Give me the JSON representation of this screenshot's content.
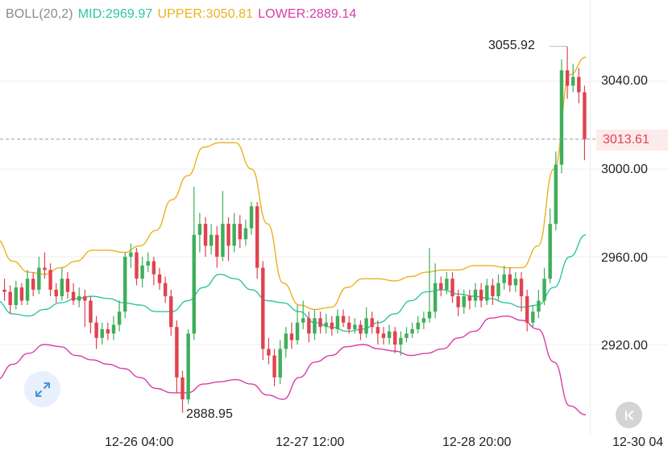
{
  "legend": {
    "indicator": "BOLL(20,2)",
    "mid_label": "MID:2969.97",
    "upper_label": "UPPER:3050.81",
    "lower_label": "LOWER:2889.14"
  },
  "colors": {
    "up": "#3fae5a",
    "down": "#e0434f",
    "mid": "#2cc6a3",
    "upper": "#eab21e",
    "lower": "#d63da8",
    "grid": "#efefef",
    "price_line": "#9a9a9a",
    "price_tag_bg": "#fdeaea",
    "price_tag_text": "#e0434f"
  },
  "icons": {
    "expand": "expand-diagonal-arrows-icon",
    "scroll_right": "scroll-to-latest-chevron-icon"
  },
  "chart_data": {
    "type": "candlestick",
    "indicator": "Bollinger Bands (20,2)",
    "y_axis": {
      "position": "right",
      "ticks": [
        3040,
        3000,
        2960,
        2920
      ],
      "tick_labels": [
        "3040.00",
        "3000.00",
        "2960.00",
        "2920.00"
      ],
      "range": [
        2878,
        3075
      ]
    },
    "x_axis": {
      "tick_labels": [
        "12-26 04:00",
        "12-27 12:00",
        "12-28 20:00",
        "12-30 04"
      ]
    },
    "current_price": {
      "value": 3013.61,
      "label": "3013.61"
    },
    "high_marker": {
      "value": 3055.92,
      "label": "3055.92"
    },
    "low_marker": {
      "value": 2888.95,
      "label": "2888.95"
    },
    "grid": true,
    "candles": [
      [
        2945,
        2944,
        2950,
        2940
      ],
      [
        2944,
        2938,
        2947,
        2934
      ],
      [
        2938,
        2946,
        2949,
        2936
      ],
      [
        2946,
        2940,
        2948,
        2938
      ],
      [
        2940,
        2950,
        2954,
        2938
      ],
      [
        2950,
        2945,
        2953,
        2942
      ],
      [
        2945,
        2955,
        2960,
        2943
      ],
      [
        2955,
        2954,
        2962,
        2950
      ],
      [
        2954,
        2945,
        2957,
        2942
      ],
      [
        2945,
        2942,
        2948,
        2939
      ],
      [
        2942,
        2950,
        2955,
        2940
      ],
      [
        2950,
        2944,
        2953,
        2941
      ],
      [
        2944,
        2940,
        2948,
        2938
      ],
      [
        2940,
        2942,
        2946,
        2937
      ],
      [
        2942,
        2940,
        2945,
        2928
      ],
      [
        2940,
        2930,
        2942,
        2925
      ],
      [
        2930,
        2923,
        2933,
        2918
      ],
      [
        2923,
        2927,
        2930,
        2920
      ],
      [
        2927,
        2925,
        2930,
        2922
      ],
      [
        2925,
        2929,
        2933,
        2922
      ],
      [
        2929,
        2935,
        2940,
        2926
      ],
      [
        2935,
        2960,
        2962,
        2932
      ],
      [
        2960,
        2962,
        2966,
        2955
      ],
      [
        2962,
        2950,
        2964,
        2947
      ],
      [
        2950,
        2956,
        2960,
        2946
      ],
      [
        2956,
        2958,
        2962,
        2953
      ],
      [
        2958,
        2952,
        2960,
        2947
      ],
      [
        2952,
        2948,
        2955,
        2945
      ],
      [
        2948,
        2942,
        2951,
        2939
      ],
      [
        2942,
        2928,
        2945,
        2924
      ],
      [
        2928,
        2905,
        2931,
        2898
      ],
      [
        2905,
        2895,
        2908,
        2889
      ],
      [
        2895,
        2925,
        2927,
        2893
      ],
      [
        2925,
        2970,
        2992,
        2922
      ],
      [
        2970,
        2975,
        2980,
        2962
      ],
      [
        2975,
        2965,
        2978,
        2960
      ],
      [
        2965,
        2970,
        2975,
        2961
      ],
      [
        2970,
        2960,
        2974,
        2955
      ],
      [
        2960,
        2975,
        2990,
        2958
      ],
      [
        2975,
        2965,
        2978,
        2958
      ],
      [
        2965,
        2975,
        2980,
        2962
      ],
      [
        2975,
        2968,
        2979,
        2964
      ],
      [
        2968,
        2973,
        2977,
        2965
      ],
      [
        2973,
        2983,
        2985,
        2970
      ],
      [
        2983,
        2955,
        2985,
        2950
      ],
      [
        2955,
        2918,
        2958,
        2913
      ],
      [
        2918,
        2915,
        2923,
        2911
      ],
      [
        2915,
        2905,
        2918,
        2901
      ],
      [
        2905,
        2918,
        2922,
        2902
      ],
      [
        2918,
        2925,
        2928,
        2914
      ],
      [
        2925,
        2922,
        2930,
        2918
      ],
      [
        2922,
        2930,
        2938,
        2920
      ],
      [
        2930,
        2932,
        2940,
        2927
      ],
      [
        2932,
        2925,
        2935,
        2921
      ],
      [
        2925,
        2932,
        2936,
        2922
      ],
      [
        2932,
        2928,
        2935,
        2925
      ],
      [
        2928,
        2930,
        2934,
        2925
      ],
      [
        2930,
        2927,
        2933,
        2924
      ],
      [
        2927,
        2933,
        2936,
        2925
      ],
      [
        2933,
        2930,
        2936,
        2928
      ],
      [
        2930,
        2927,
        2933,
        2925
      ],
      [
        2927,
        2929,
        2932,
        2925
      ],
      [
        2929,
        2925,
        2931,
        2922
      ],
      [
        2925,
        2932,
        2937,
        2923
      ],
      [
        2932,
        2928,
        2935,
        2925
      ],
      [
        2928,
        2925,
        2931,
        2920
      ],
      [
        2925,
        2923,
        2928,
        2920
      ],
      [
        2923,
        2926,
        2929,
        2920
      ],
      [
        2926,
        2920,
        2928,
        2916
      ],
      [
        2920,
        2923,
        2926,
        2915
      ],
      [
        2923,
        2925,
        2928,
        2921
      ],
      [
        2925,
        2927,
        2930,
        2923
      ],
      [
        2927,
        2930,
        2933,
        2925
      ],
      [
        2930,
        2932,
        2935,
        2927
      ],
      [
        2932,
        2935,
        2964,
        2930
      ],
      [
        2935,
        2948,
        2957,
        2932
      ],
      [
        2948,
        2945,
        2951,
        2942
      ],
      [
        2945,
        2950,
        2953,
        2943
      ],
      [
        2950,
        2942,
        2953,
        2939
      ],
      [
        2942,
        2937,
        2945,
        2933
      ],
      [
        2937,
        2942,
        2945,
        2934
      ],
      [
        2942,
        2940,
        2945,
        2936
      ],
      [
        2940,
        2945,
        2948,
        2937
      ],
      [
        2945,
        2940,
        2948,
        2937
      ],
      [
        2940,
        2947,
        2950,
        2938
      ],
      [
        2947,
        2942,
        2950,
        2938
      ],
      [
        2942,
        2948,
        2952,
        2940
      ],
      [
        2948,
        2952,
        2956,
        2945
      ],
      [
        2952,
        2947,
        2955,
        2944
      ],
      [
        2947,
        2950,
        2953,
        2944
      ],
      [
        2950,
        2942,
        2953,
        2935
      ],
      [
        2942,
        2930,
        2945,
        2926
      ],
      [
        2930,
        2935,
        2938,
        2928
      ],
      [
        2935,
        2940,
        2945,
        2932
      ],
      [
        2940,
        2950,
        2955,
        2938
      ],
      [
        2950,
        2975,
        2982,
        2948
      ],
      [
        2975,
        3002,
        3008,
        2972
      ],
      [
        3002,
        3045,
        3050,
        2998
      ],
      [
        3045,
        3038,
        3055.92,
        3032
      ],
      [
        3038,
        3042,
        3048,
        3035
      ],
      [
        3042,
        3035,
        3046,
        3030
      ],
      [
        3035,
        3013.61,
        3038,
        3004
      ]
    ],
    "bands": {
      "upper": [
        2968,
        2958,
        2953,
        2952,
        2955,
        2958,
        2963,
        2963,
        2962,
        2965,
        2972,
        2986,
        2997,
        3010,
        3012,
        3012,
        3000,
        2975,
        2948,
        2938,
        2936,
        2937,
        2946,
        2950,
        2950,
        2949,
        2951,
        2953,
        2954,
        2954,
        2956,
        2956,
        2955,
        2955,
        2965,
        3000,
        3043,
        3051
      ],
      "mid": [
        2940,
        2934,
        2933,
        2936,
        2939,
        2941,
        2942,
        2941,
        2939,
        2938,
        2935,
        2935,
        2940,
        2946,
        2952,
        2950,
        2945,
        2940,
        2939,
        2935,
        2930,
        2928,
        2926,
        2927,
        2930,
        2934,
        2940,
        2944,
        2945,
        2943,
        2942,
        2941,
        2939,
        2937,
        2938,
        2946,
        2960,
        2970
      ],
      "lower": [
        2904,
        2911,
        2916,
        2920,
        2919,
        2915,
        2913,
        2911,
        2909,
        2905,
        2900,
        2898,
        2898,
        2902,
        2903,
        2904,
        2902,
        2897,
        2895,
        2905,
        2912,
        2915,
        2919,
        2920,
        2918,
        2917,
        2915,
        2916,
        2918,
        2923,
        2926,
        2932,
        2933,
        2931,
        2927,
        2912,
        2892,
        2888
      ]
    }
  }
}
